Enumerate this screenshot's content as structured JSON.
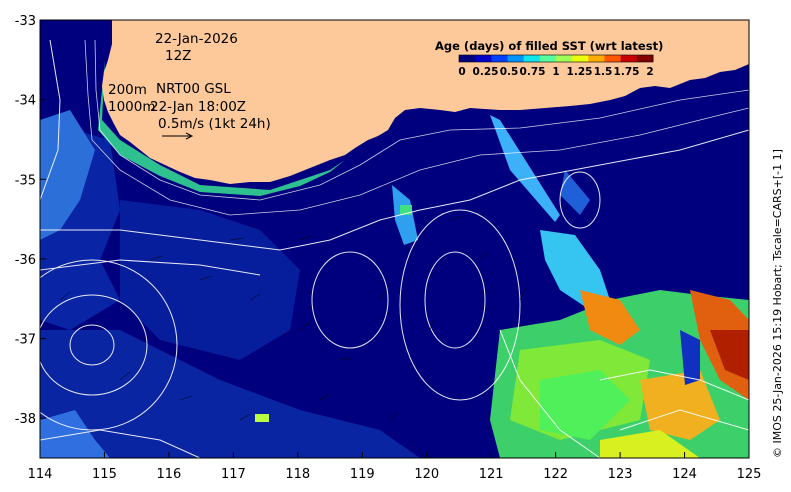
{
  "annotations": {
    "date": "22-Jan-2026",
    "hour": "12Z",
    "contour_label_1": "200m",
    "contour_label_2": "1000m",
    "product": "NRT00 GSL",
    "product_time": "22-Jan 18:00Z",
    "vector_scale": "0.5m/s (1kt 24h)"
  },
  "colorbar": {
    "title": "Age (days) of filled SST (wrt latest)",
    "tick_labels": [
      "0",
      "0.25",
      "0.5",
      "0.75",
      "1",
      "1.25",
      "1.5",
      "1.75",
      "2"
    ],
    "colors": [
      "#00007f",
      "#0000c8",
      "#0040ff",
      "#0094ff",
      "#11e5ec",
      "#57ff9f",
      "#a0ff57",
      "#e9ff0d",
      "#ffac00",
      "#ff5600",
      "#c80000",
      "#800000"
    ]
  },
  "axes": {
    "x_ticks": [
      "114",
      "115",
      "116",
      "117",
      "118",
      "119",
      "120",
      "121",
      "122",
      "123",
      "124",
      "125"
    ],
    "y_ticks": [
      "-33",
      "-34",
      "-35",
      "-36",
      "-37",
      "-38"
    ],
    "x_range": [
      114,
      125
    ],
    "y_range": [
      -38.5,
      -33
    ]
  },
  "credit": "© IMOS 25-Jan-2026 15:19 Hobart; Tscale=CARS+[-1 1]",
  "colors": {
    "land": "#fdc99b",
    "ocean_base": "#00007f",
    "ocean_mid": "#0b2fb0",
    "ocean_light": "#3f7fe0",
    "contour": "#ffffff"
  }
}
